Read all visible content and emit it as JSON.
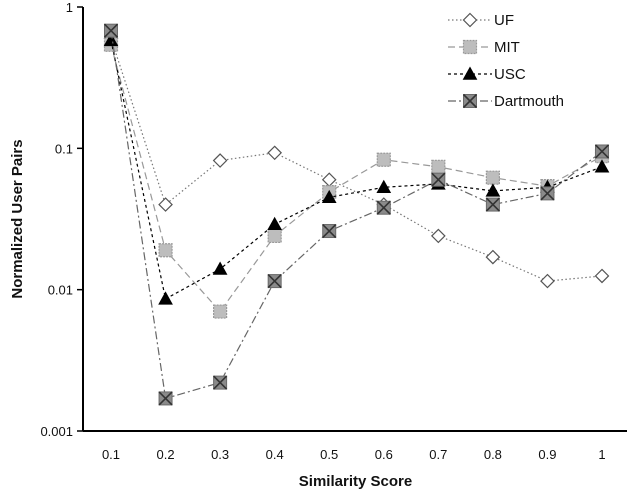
{
  "chart_data": {
    "type": "line",
    "xlabel": "Similarity Score",
    "ylabel": "Normalized User Pairs",
    "yscale": "log",
    "ylim": [
      0.001,
      1
    ],
    "y_ticks": [
      "0.001",
      "0.01",
      "0.1",
      "1"
    ],
    "x": [
      0.1,
      0.2,
      0.3,
      0.4,
      0.5,
      0.6,
      0.7,
      0.8,
      0.9,
      1.0
    ],
    "x_ticks": [
      "0.1",
      "0.2",
      "0.3",
      "0.4",
      "0.5",
      "0.6",
      "0.7",
      "0.8",
      "0.9",
      "1"
    ],
    "legend_position": "top-right",
    "grid": false,
    "series": [
      {
        "name": "UF",
        "marker": "diamond-open",
        "dash": "dotted",
        "color": "#777777",
        "values": [
          0.6,
          0.04,
          0.082,
          0.093,
          0.06,
          0.04,
          0.024,
          0.017,
          0.0115,
          0.0125
        ]
      },
      {
        "name": "MIT",
        "marker": "square-gray",
        "dash": "dashed",
        "color": "#999999",
        "values": [
          0.54,
          0.019,
          0.007,
          0.024,
          0.049,
          0.083,
          0.074,
          0.062,
          0.054,
          0.088
        ]
      },
      {
        "name": "USC",
        "marker": "triangle-black",
        "dash": "short-dash",
        "color": "#000000",
        "values": [
          0.58,
          0.0086,
          0.014,
          0.029,
          0.045,
          0.053,
          0.056,
          0.05,
          0.053,
          0.074
        ]
      },
      {
        "name": "Dartmouth",
        "marker": "x-square",
        "dash": "dash-dot",
        "color": "#666666",
        "values": [
          0.68,
          0.0017,
          0.0022,
          0.0115,
          0.026,
          0.038,
          0.06,
          0.04,
          0.048,
          0.095
        ]
      }
    ]
  }
}
